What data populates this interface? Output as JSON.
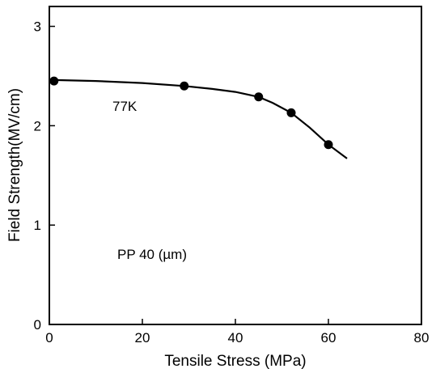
{
  "chart_data": {
    "type": "line",
    "title": "",
    "xlabel": "Tensile Stress (MPa)",
    "ylabel": "Field Strength(MV/cm)",
    "xlim": [
      0,
      80
    ],
    "ylim": [
      0,
      3.2
    ],
    "xticks": [
      0,
      20,
      40,
      60,
      80
    ],
    "yticks": [
      0,
      1,
      2,
      3
    ],
    "grid": false,
    "legend": "none",
    "series": [
      {
        "points_x": [
          1,
          29,
          45,
          52,
          60
        ],
        "points_y": [
          2.45,
          2.4,
          2.29,
          2.13,
          1.81
        ],
        "curve_x": [
          1,
          10,
          20,
          29,
          35,
          40,
          45,
          48,
          52,
          56,
          60,
          64
        ],
        "curve_y": [
          2.46,
          2.45,
          2.43,
          2.4,
          2.37,
          2.34,
          2.29,
          2.23,
          2.13,
          1.98,
          1.81,
          1.67
        ]
      }
    ],
    "annotations": [
      "77K",
      "PP 40 (µm)"
    ]
  },
  "colors": {
    "ink": "#000000",
    "background": "#ffffff"
  }
}
